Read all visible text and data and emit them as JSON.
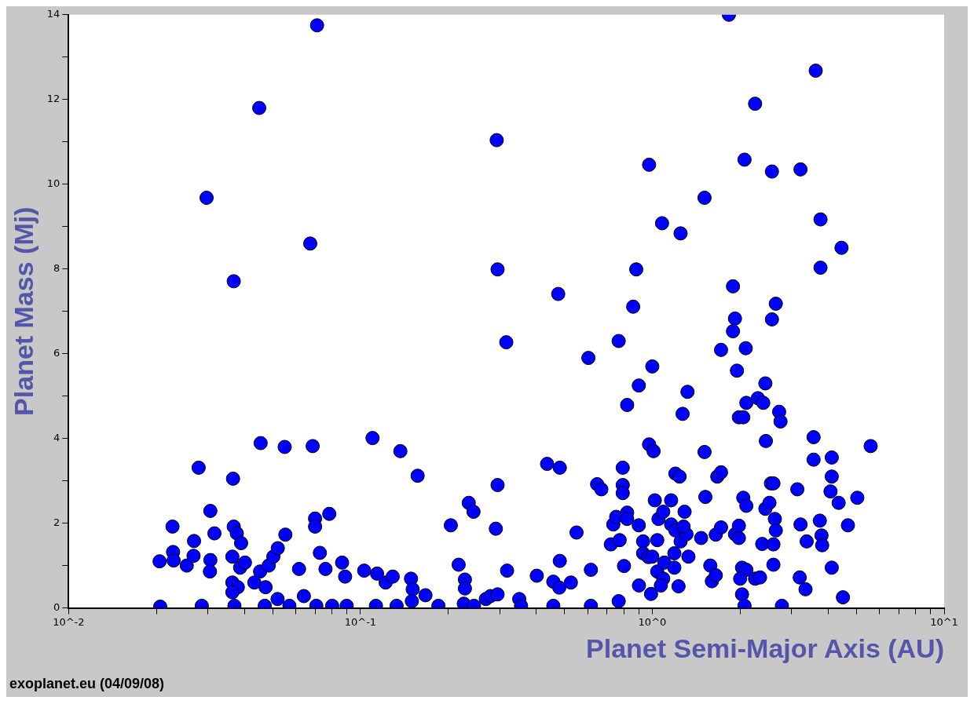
{
  "chart_data": {
    "type": "scatter",
    "xlabel": "Planet Semi-Major Axis (AU)",
    "ylabel": "Planet Mass (Mj)",
    "annotations": [
      "exoplanet.eu (04/09/08)"
    ],
    "log": "x",
    "grid": false,
    "marker": "circle",
    "color": "#0000ff",
    "xlim": [
      0.01,
      10
    ],
    "ylim": [
      0,
      14
    ],
    "xticks": [
      {
        "value": 0.01,
        "label": "10^-2"
      },
      {
        "value": 0.02,
        "label": null
      },
      {
        "value": 0.03,
        "label": null
      },
      {
        "value": 0.04,
        "label": null
      },
      {
        "value": 0.05,
        "label": null
      },
      {
        "value": 0.06,
        "label": null
      },
      {
        "value": 0.07,
        "label": null
      },
      {
        "value": 0.08,
        "label": null
      },
      {
        "value": 0.09,
        "label": null
      },
      {
        "value": 0.1,
        "label": "10^-1"
      },
      {
        "value": 0.2,
        "label": null
      },
      {
        "value": 0.3,
        "label": null
      },
      {
        "value": 0.4,
        "label": null
      },
      {
        "value": 0.5,
        "label": null
      },
      {
        "value": 0.6,
        "label": null
      },
      {
        "value": 0.7,
        "label": null
      },
      {
        "value": 0.8,
        "label": null
      },
      {
        "value": 0.9,
        "label": null
      },
      {
        "value": 1,
        "label": "10^0"
      },
      {
        "value": 2,
        "label": null
      },
      {
        "value": 3,
        "label": null
      },
      {
        "value": 4,
        "label": null
      },
      {
        "value": 5,
        "label": null
      },
      {
        "value": 6,
        "label": null
      },
      {
        "value": 7,
        "label": null
      },
      {
        "value": 8,
        "label": null
      },
      {
        "value": 9,
        "label": null
      },
      {
        "value": 10,
        "label": "10^1"
      }
    ],
    "yticks": [
      0,
      {
        "value": 1,
        "label": null
      },
      2,
      {
        "value": 3,
        "label": null
      },
      4,
      {
        "value": 5,
        "label": null
      },
      6,
      {
        "value": 7,
        "label": null
      },
      8,
      {
        "value": 9,
        "label": null
      },
      10,
      {
        "value": 11,
        "label": null
      },
      12,
      {
        "value": 13,
        "label": null
      },
      14
    ],
    "x": [
      0.071,
      1.83,
      3.63,
      0.045,
      2.25,
      0.293,
      0.0297,
      0.975,
      2.07,
      2.57,
      3.22,
      1.51,
      1.08,
      1.25,
      3.77,
      4.45,
      0.0673,
      0.0368,
      0.295,
      0.881,
      3.77,
      0.476,
      0.86,
      1.89,
      2.65,
      2.57,
      1.92,
      1.89,
      0.316,
      0.767,
      0.604,
      1.72,
      2.09,
      1.0,
      1.95,
      0.899,
      1.32,
      2.44,
      2.1,
      2.3,
      2.4,
      1.98,
      2.05,
      2.72,
      2.75,
      0.82,
      1.27,
      0.0206,
      0.0205,
      0.0227,
      0.0228,
      0.0229,
      0.0254,
      0.0269,
      0.0268,
      0.0279,
      0.0286,
      0.0306,
      0.0305,
      0.0306,
      0.0316,
      0.0366,
      0.0368,
      0.0377,
      0.0364,
      0.0364,
      0.038,
      0.0364,
      0.037,
      0.0387,
      0.039,
      0.0402,
      0.0455,
      0.0453,
      0.0433,
      0.0473,
      0.0485,
      0.0503,
      0.0521,
      0.055,
      0.0553,
      0.047,
      0.0571,
      0.052,
      0.0616,
      0.064,
      0.0686,
      0.0699,
      0.0699,
      0.0726,
      0.0706,
      0.0759,
      0.0782,
      0.08,
      0.0865,
      0.0886,
      0.0897,
      0.103,
      0.11,
      0.114,
      0.113,
      0.122,
      0.129,
      0.133,
      0.137,
      0.149,
      0.151,
      0.157,
      0.15,
      0.167,
      0.185,
      0.204,
      0.217,
      0.228,
      0.228,
      0.235,
      0.244,
      0.226,
      0.245,
      0.269,
      0.279,
      0.295,
      0.291,
      0.295,
      0.318,
      0.35,
      0.355,
      0.402,
      0.436,
      0.458,
      0.482,
      0.482,
      0.48,
      0.458,
      0.526,
      0.55,
      0.616,
      0.616,
      0.647,
      0.669,
      0.721,
      0.735,
      0.773,
      0.752,
      0.767,
      0.792,
      0.792,
      0.792,
      0.8,
      0.82,
      0.82,
      0.899,
      0.975,
      1.01,
      0.93,
      0.93,
      0.9,
      0.97,
      1.0,
      0.99,
      1.02,
      1.05,
      1.09,
      1.04,
      1.04,
      1.09,
      1.1,
      1.07,
      1.16,
      1.16,
      1.2,
      1.19,
      1.19,
      1.2,
      1.24,
      1.23,
      1.25,
      1.29,
      1.31,
      1.28,
      1.33,
      1.51,
      1.52,
      1.47,
      1.58,
      1.6,
      1.65,
      1.67,
      1.72,
      1.65,
      1.72,
      1.92,
      1.98,
      1.98,
      2.05,
      2.1,
      2.03,
      2.1,
      2.0,
      2.03,
      2.07,
      2.25,
      2.34,
      2.44,
      2.45,
      2.55,
      2.52,
      2.38,
      2.6,
      2.63,
      2.65,
      2.6,
      2.6,
      2.78,
      3.14,
      3.2,
      3.35,
      3.22,
      3.38,
      3.57,
      3.57,
      3.75,
      3.8,
      3.82,
      4.12,
      4.12,
      4.08,
      4.12,
      4.35,
      4.5,
      4.68,
      5.04,
      5.6
    ],
    "values": [
      13.75,
      14.0,
      12.68,
      11.8,
      11.9,
      11.04,
      9.68,
      10.46,
      10.58,
      10.3,
      10.35,
      9.68,
      9.08,
      8.84,
      9.17,
      8.5,
      8.6,
      7.71,
      7.99,
      7.99,
      8.03,
      7.41,
      7.11,
      7.59,
      7.18,
      6.81,
      6.83,
      6.53,
      6.27,
      6.3,
      5.9,
      6.09,
      6.13,
      5.7,
      5.6,
      5.25,
      5.1,
      5.3,
      4.84,
      4.95,
      4.84,
      4.5,
      4.5,
      4.63,
      4.4,
      4.79,
      4.58,
      0.03,
      1.1,
      1.92,
      1.32,
      1.12,
      1.0,
      1.58,
      1.23,
      3.31,
      0.05,
      1.13,
      0.86,
      2.29,
      1.76,
      3.05,
      1.92,
      1.76,
      1.21,
      0.6,
      0.49,
      0.37,
      0.05,
      0.95,
      1.53,
      1.07,
      3.89,
      0.86,
      0.6,
      0.49,
      1.0,
      1.21,
      1.41,
      3.8,
      1.73,
      0.05,
      0.05,
      0.21,
      0.92,
      0.28,
      3.82,
      2.11,
      1.92,
      1.3,
      0.05,
      0.92,
      2.22,
      0.05,
      1.07,
      0.74,
      0.05,
      0.88,
      4.01,
      0.81,
      0.05,
      0.6,
      0.74,
      0.05,
      3.7,
      0.69,
      0.44,
      3.12,
      0.16,
      0.3,
      0.05,
      1.95,
      1.02,
      0.67,
      0.46,
      2.48,
      2.27,
      0.1,
      0.05,
      0.21,
      0.28,
      2.9,
      1.87,
      0.32,
      0.88,
      0.21,
      0.05,
      0.76,
      3.4,
      0.62,
      3.31,
      1.11,
      0.48,
      0.05,
      0.6,
      1.78,
      0.9,
      0.05,
      2.92,
      2.8,
      1.5,
      1.97,
      1.6,
      2.15,
      0.16,
      3.31,
      2.9,
      2.71,
      0.99,
      2.25,
      2.1,
      1.95,
      3.86,
      3.7,
      1.57,
      1.29,
      0.53,
      1.2,
      1.21,
      0.33,
      2.54,
      2.1,
      2.27,
      1.6,
      0.86,
      0.69,
      1.07,
      0.53,
      2.54,
      1.97,
      1.83,
      1.29,
      0.95,
      3.17,
      3.1,
      0.51,
      1.57,
      2.27,
      1.74,
      1.92,
      1.21,
      3.68,
      2.62,
      1.65,
      1.0,
      0.63,
      0.77,
      3.1,
      3.2,
      1.73,
      1.9,
      1.74,
      1.65,
      1.94,
      2.6,
      2.41,
      0.95,
      0.9,
      0.69,
      0.32,
      0.05,
      0.69,
      0.72,
      2.34,
      3.94,
      2.94,
      2.48,
      1.51,
      2.94,
      2.1,
      1.83,
      1.5,
      1.02,
      0.05,
      2.8,
      0.72,
      0.44,
      1.97,
      1.57,
      4.03,
      3.5,
      2.06,
      1.71,
      1.48,
      3.55,
      3.1,
      2.75,
      0.95,
      2.48,
      0.25,
      1.95,
      2.6,
      3.82
    ]
  }
}
